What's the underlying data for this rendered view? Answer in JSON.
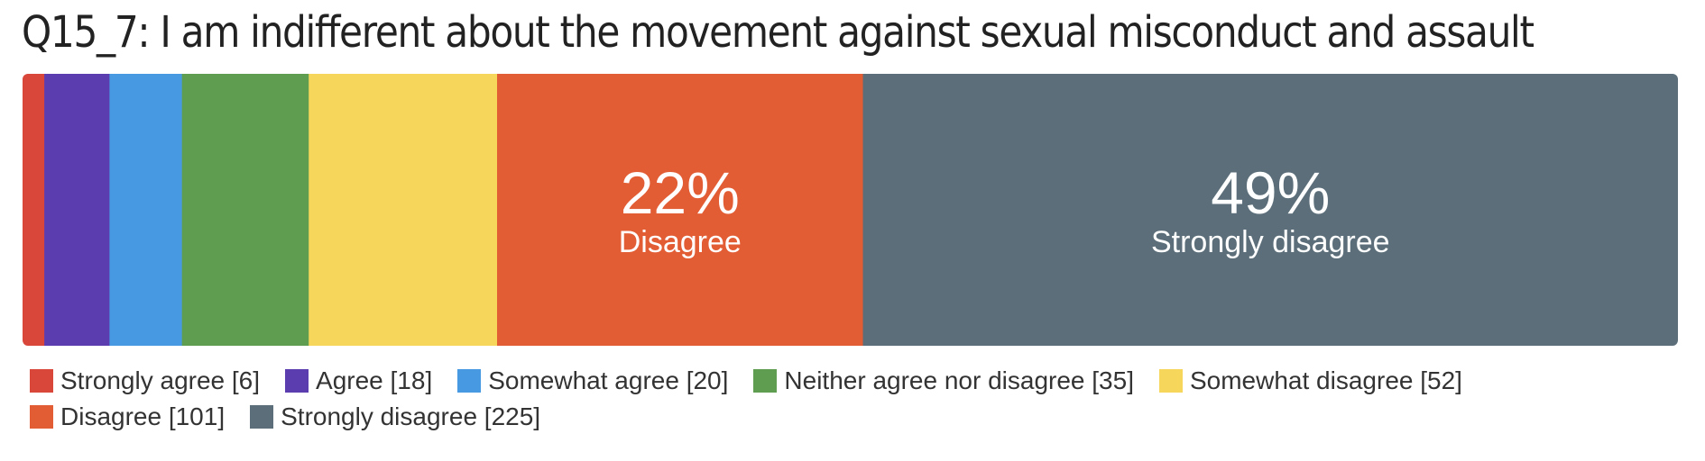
{
  "chart_data": {
    "type": "bar",
    "orientation": "horizontal-stacked",
    "title": "Q15_7: I am indifferent about the movement against sexual misconduct and assault",
    "categories": [
      "Strongly agree",
      "Agree",
      "Somewhat agree",
      "Neither agree nor disagree",
      "Somewhat disagree",
      "Disagree",
      "Strongly disagree"
    ],
    "values": [
      6,
      18,
      20,
      35,
      52,
      101,
      225
    ],
    "colors": [
      "#d9463a",
      "#5b3db0",
      "#479ae1",
      "#5f9e50",
      "#f6d65b",
      "#e25c34",
      "#5b6e79"
    ],
    "legend": [
      {
        "label": "Strongly agree [6]",
        "color": "#d9463a"
      },
      {
        "label": "Agree [18]",
        "color": "#5b3db0"
      },
      {
        "label": "Somewhat agree [20]",
        "color": "#479ae1"
      },
      {
        "label": "Neither agree nor disagree [35]",
        "color": "#5f9e50"
      },
      {
        "label": "Somewhat disagree [52]",
        "color": "#f6d65b"
      },
      {
        "label": "Disagree [101]",
        "color": "#e25c34"
      },
      {
        "label": "Strongly disagree [225]",
        "color": "#5b6e79"
      }
    ],
    "segment_labels": [
      {
        "index": 5,
        "percent": "22%",
        "name": "Disagree"
      },
      {
        "index": 6,
        "percent": "49%",
        "name": "Strongly disagree"
      }
    ],
    "legend_position": "bottom",
    "grid": false
  }
}
